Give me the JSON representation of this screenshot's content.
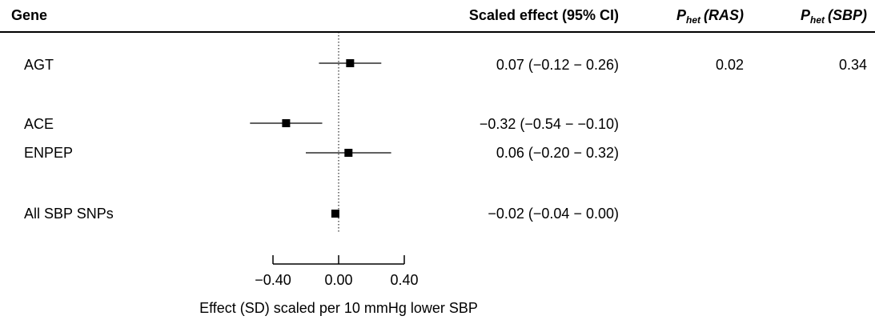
{
  "headers": {
    "gene": "Gene",
    "effect": "Scaled effect (95% CI)",
    "p_het_ras_main": "P",
    "p_het_ras_sub": "het",
    "p_het_ras_paren": "(RAS)",
    "p_het_sbp_main": "P",
    "p_het_sbp_sub": "het",
    "p_het_sbp_paren": "(SBP)"
  },
  "rows": [
    {
      "gene": "AGT",
      "ci_text": "0.07 (−0.12 − 0.26)",
      "p_het_ras": "0.02",
      "p_het_sbp": "0.34"
    },
    {
      "gene": "ACE",
      "ci_text": "−0.32 (−0.54 − −0.10)",
      "p_het_ras": "",
      "p_het_sbp": ""
    },
    {
      "gene": "ENPEP",
      "ci_text": "0.06 (−0.20 − 0.32)",
      "p_het_ras": "",
      "p_het_sbp": ""
    },
    {
      "gene": "All SBP SNPs",
      "ci_text": "−0.02 (−0.04 − 0.00)",
      "p_het_ras": "",
      "p_het_sbp": ""
    }
  ],
  "chart_data": {
    "type": "forest",
    "xlabel": "Effect (SD) scaled per 10 mmHg lower SBP",
    "xticks": [
      -0.4,
      0.0,
      0.4
    ],
    "xtick_labels": [
      "−0.40",
      "0.00",
      "0.40"
    ],
    "reference_line": 0.0,
    "estimates": [
      {
        "label": "AGT",
        "estimate": 0.07,
        "lower": -0.12,
        "upper": 0.26
      },
      {
        "label": "ACE",
        "estimate": -0.32,
        "lower": -0.54,
        "upper": -0.1
      },
      {
        "label": "ENPEP",
        "estimate": 0.06,
        "lower": -0.2,
        "upper": 0.32
      },
      {
        "label": "All SBP SNPs",
        "estimate": -0.02,
        "lower": -0.04,
        "upper": 0.0
      }
    ]
  }
}
